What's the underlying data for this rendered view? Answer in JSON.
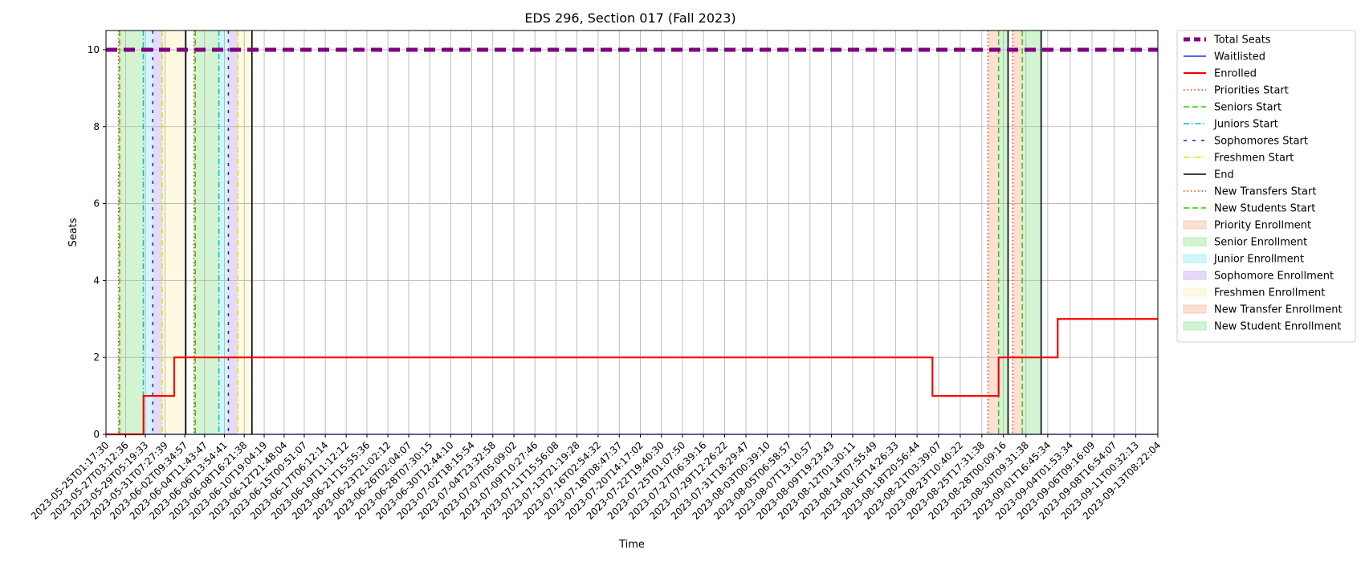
{
  "chart_data": {
    "type": "line",
    "title": "EDS 296, Section 017 (Fall 2023)",
    "xlabel": "Time",
    "ylabel": "Seats",
    "ylim": [
      0,
      10.5
    ],
    "yticks": [
      0,
      2,
      4,
      6,
      8,
      10
    ],
    "grid": true,
    "legend_placement": "outside-right",
    "xlim": [
      "2023-05-25T01:17:30",
      "2023-09-13T08:22:04"
    ],
    "xticks": [
      "2023-05-25T01:17:30",
      "2023-05-27T03:12:36",
      "2023-05-29T05:19:33",
      "2023-05-31T07:27:39",
      "2023-06-02T09:34:57",
      "2023-06-04T11:43:47",
      "2023-06-06T13:54:41",
      "2023-06-08T16:21:38",
      "2023-06-10T19:04:19",
      "2023-06-12T21:48:04",
      "2023-06-15T00:51:07",
      "2023-06-17T06:12:14",
      "2023-06-19T11:12:12",
      "2023-06-21T15:55:36",
      "2023-06-23T21:02:12",
      "2023-06-26T02:04:07",
      "2023-06-28T07:30:15",
      "2023-06-30T12:44:10",
      "2023-07-02T18:15:54",
      "2023-07-04T23:32:58",
      "2023-07-07T05:09:02",
      "2023-07-09T10:27:46",
      "2023-07-11T15:56:08",
      "2023-07-13T21:19:28",
      "2023-07-16T02:54:32",
      "2023-07-18T08:47:37",
      "2023-07-20T14:17:02",
      "2023-07-22T19:40:30",
      "2023-07-25T01:07:50",
      "2023-07-27T06:39:16",
      "2023-07-29T12:26:22",
      "2023-07-31T18:29:47",
      "2023-08-03T00:39:10",
      "2023-08-05T06:58:57",
      "2023-08-07T13:10:57",
      "2023-08-09T19:23:43",
      "2023-08-12T01:30:11",
      "2023-08-14T07:55:49",
      "2023-08-16T14:26:33",
      "2023-08-18T20:56:44",
      "2023-08-21T03:39:07",
      "2023-08-23T10:40:22",
      "2023-08-25T17:31:38",
      "2023-08-28T00:09:16",
      "2023-08-30T09:31:38",
      "2023-09-01T16:45:34",
      "2023-09-04T01:53:34",
      "2023-09-06T09:16:09",
      "2023-09-08T16:54:07",
      "2023-09-11T00:32:13",
      "2023-09-13T08:22:04"
    ],
    "series": [
      {
        "name": "Total Seats",
        "color": "#800080",
        "style": "dashed-thick",
        "points": [
          [
            "2023-05-25T01:17:30",
            10
          ],
          [
            "2023-09-13T08:22:04",
            10
          ]
        ]
      },
      {
        "name": "Waitlisted",
        "color": "#0000ff",
        "style": "solid-thin",
        "points": [
          [
            "2023-05-25T01:17:30",
            0
          ],
          [
            "2023-09-13T08:22:04",
            0
          ]
        ]
      },
      {
        "name": "Enrolled",
        "color": "#ff0000",
        "style": "solid-step",
        "points": [
          [
            "2023-05-25T01:17:30",
            0
          ],
          [
            "2023-05-29T00:30:00",
            1
          ],
          [
            "2023-06-01T06:30:00",
            2
          ],
          [
            "2023-08-20T12:00:00",
            1
          ],
          [
            "2023-08-27T12:00:00",
            2
          ],
          [
            "2023-09-02T18:00:00",
            3
          ],
          [
            "2023-09-13T08:22:04",
            3
          ]
        ]
      }
    ],
    "phases": [
      {
        "name": "Priority Enrollment",
        "start": "2023-05-26T09:00:00",
        "end": "2023-05-26T12:00:00",
        "color": "#f4a582"
      },
      {
        "name": "Senior Enrollment",
        "start": "2023-05-26T12:00:00",
        "end": "2023-05-29T00:00:00",
        "color": "#7fe07f"
      },
      {
        "name": "Junior Enrollment",
        "start": "2023-05-29T00:00:00",
        "end": "2023-05-30T00:00:00",
        "color": "#7fe5f0"
      },
      {
        "name": "Sophomore Enrollment",
        "start": "2023-05-30T00:00:00",
        "end": "2023-05-31T00:00:00",
        "color": "#b799e8"
      },
      {
        "name": "Freshmen Enrollment",
        "start": "2023-05-31T00:00:00",
        "end": "2023-06-02T12:00:00",
        "color": "#f5f2a8"
      },
      {
        "name": "Priority Enrollment",
        "start": "2023-06-03T09:00:00",
        "end": "2023-06-03T12:00:00",
        "color": "#f4a582"
      },
      {
        "name": "Senior Enrollment",
        "start": "2023-06-03T12:00:00",
        "end": "2023-06-06T00:00:00",
        "color": "#7fe07f"
      },
      {
        "name": "Junior Enrollment",
        "start": "2023-06-06T00:00:00",
        "end": "2023-06-07T00:00:00",
        "color": "#7fe5f0"
      },
      {
        "name": "Sophomore Enrollment",
        "start": "2023-06-07T00:00:00",
        "end": "2023-06-08T00:00:00",
        "color": "#b799e8"
      },
      {
        "name": "Freshmen Enrollment",
        "start": "2023-06-08T00:00:00",
        "end": "2023-06-09T12:00:00",
        "color": "#f5f2a8"
      },
      {
        "name": "New Transfer Enrollment",
        "start": "2023-08-26T09:00:00",
        "end": "2023-08-27T12:00:00",
        "color": "#f4a582"
      },
      {
        "name": "New Student Enrollment",
        "start": "2023-08-27T12:00:00",
        "end": "2023-08-28T12:00:00",
        "color": "#7fe07f"
      },
      {
        "name": "New Transfer Enrollment",
        "start": "2023-08-29T00:00:00",
        "end": "2023-08-30T00:00:00",
        "color": "#f4a582"
      },
      {
        "name": "New Student Enrollment",
        "start": "2023-08-30T00:00:00",
        "end": "2023-09-01T00:00:00",
        "color": "#7fe07f"
      }
    ],
    "markers": [
      {
        "name": "Priorities Start",
        "x": "2023-05-26T09:00:00",
        "color": "#ff3300",
        "dash": "dotted"
      },
      {
        "name": "Seniors Start",
        "x": "2023-05-26T12:00:00",
        "color": "#33cc00",
        "dash": "dashed"
      },
      {
        "name": "Juniors Start",
        "x": "2023-05-29T00:00:00",
        "color": "#00bcd4",
        "dash": "dashdot"
      },
      {
        "name": "Sophomores Start",
        "x": "2023-05-30T00:00:00",
        "color": "#5000d0",
        "dash": "loosedash"
      },
      {
        "name": "Freshmen Start",
        "x": "2023-05-31T00:00:00",
        "color": "#e0e000",
        "dash": "dashdot"
      },
      {
        "name": "End",
        "x": "2023-06-02T12:00:00",
        "color": "#000000",
        "dash": "solid"
      },
      {
        "name": "Priorities Start",
        "x": "2023-06-03T09:00:00",
        "color": "#ff3300",
        "dash": "dotted"
      },
      {
        "name": "Seniors Start",
        "x": "2023-06-03T12:00:00",
        "color": "#33cc00",
        "dash": "dashed"
      },
      {
        "name": "Juniors Start",
        "x": "2023-06-06T00:00:00",
        "color": "#00bcd4",
        "dash": "dashdot"
      },
      {
        "name": "Sophomores Start",
        "x": "2023-06-07T00:00:00",
        "color": "#5000d0",
        "dash": "loosedash"
      },
      {
        "name": "Freshmen Start",
        "x": "2023-06-08T00:00:00",
        "color": "#e0e000",
        "dash": "dashdot"
      },
      {
        "name": "End",
        "x": "2023-06-09T12:00:00",
        "color": "#000000",
        "dash": "solid"
      },
      {
        "name": "New Transfers Start",
        "x": "2023-08-26T09:00:00",
        "color": "#ff3300",
        "dash": "dotted"
      },
      {
        "name": "New Students Start",
        "x": "2023-08-27T12:00:00",
        "color": "#33cc00",
        "dash": "dashed"
      },
      {
        "name": "End",
        "x": "2023-08-28T12:00:00",
        "color": "#000000",
        "dash": "solid"
      },
      {
        "name": "New Transfers Start",
        "x": "2023-08-29T00:00:00",
        "color": "#ff3300",
        "dash": "dotted"
      },
      {
        "name": "New Students Start",
        "x": "2023-08-30T00:00:00",
        "color": "#33cc00",
        "dash": "dashed"
      },
      {
        "name": "End",
        "x": "2023-09-01T00:00:00",
        "color": "#000000",
        "dash": "solid"
      }
    ],
    "legend": [
      {
        "label": "Total Seats",
        "kind": "line",
        "color": "#800080",
        "dash": "thickdash"
      },
      {
        "label": "Waitlisted",
        "kind": "line",
        "color": "#0000ff",
        "dash": "solid-thin"
      },
      {
        "label": "Enrolled",
        "kind": "line",
        "color": "#ff0000",
        "dash": "solid-thick"
      },
      {
        "label": "Priorities Start",
        "kind": "line",
        "color": "#ff3300",
        "dash": "dotted"
      },
      {
        "label": "Seniors Start",
        "kind": "line",
        "color": "#33cc00",
        "dash": "dashed"
      },
      {
        "label": "Juniors Start",
        "kind": "line",
        "color": "#00bcd4",
        "dash": "dashdot"
      },
      {
        "label": "Sophomores Start",
        "kind": "line",
        "color": "#5000d0",
        "dash": "loosedash"
      },
      {
        "label": "Freshmen Start",
        "kind": "line",
        "color": "#e0e000",
        "dash": "dashdot"
      },
      {
        "label": "End",
        "kind": "line",
        "color": "#000000",
        "dash": "solid"
      },
      {
        "label": "New Transfers Start",
        "kind": "line",
        "color": "#ff3300",
        "dash": "dotted"
      },
      {
        "label": "New Students Start",
        "kind": "line",
        "color": "#33cc00",
        "dash": "dashed"
      },
      {
        "label": "Priority Enrollment",
        "kind": "patch",
        "color": "#f4a582"
      },
      {
        "label": "Senior Enrollment",
        "kind": "patch",
        "color": "#7fe07f"
      },
      {
        "label": "Junior Enrollment",
        "kind": "patch",
        "color": "#7fe5f0"
      },
      {
        "label": "Sophomore Enrollment",
        "kind": "patch",
        "color": "#b799e8"
      },
      {
        "label": "Freshmen Enrollment",
        "kind": "patch",
        "color": "#f5f2a8"
      },
      {
        "label": "New Transfer Enrollment",
        "kind": "patch",
        "color": "#f4a582"
      },
      {
        "label": "New Student Enrollment",
        "kind": "patch",
        "color": "#7fe07f"
      }
    ]
  }
}
